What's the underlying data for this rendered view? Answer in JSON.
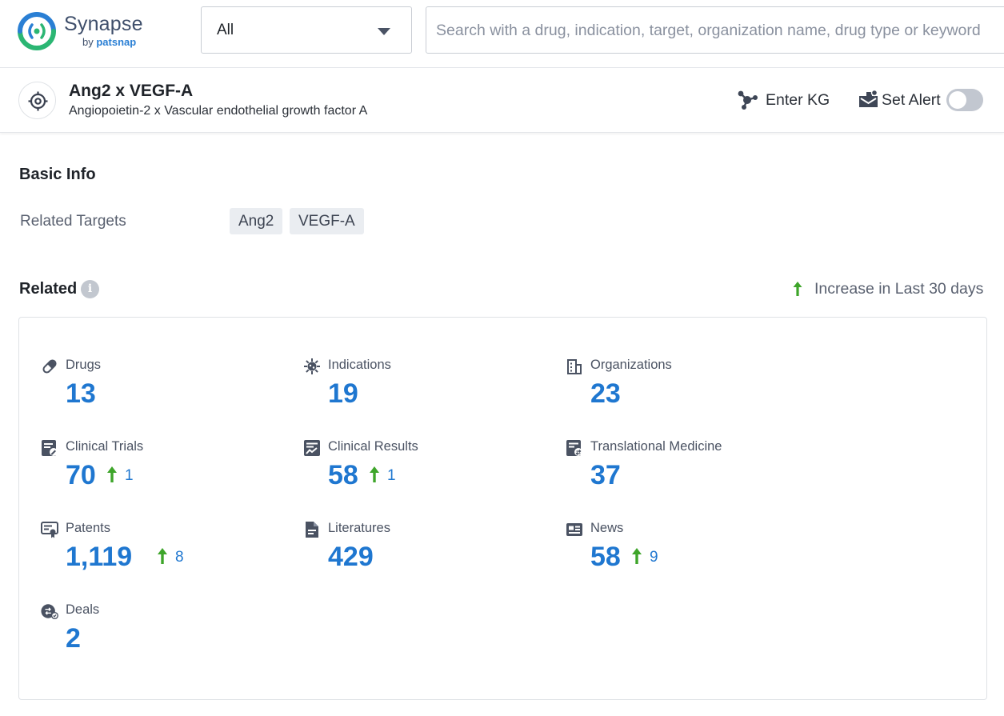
{
  "app": {
    "name": "Synapse",
    "by": "by",
    "company": "patsnap",
    "colors": {
      "accent": "#1f77d0",
      "increase": "#3ea52a",
      "brand_green": "#2bb673",
      "brand_blue": "#2a7fd4"
    }
  },
  "search": {
    "scope": "All",
    "placeholder": "Search with a drug, indication, target, organization name, drug type or keyword",
    "value": ""
  },
  "header": {
    "title": "Ang2 x VEGF-A",
    "subtitle": "Angiopoietin-2 x Vascular endothelial growth factor A",
    "enter_kg": "Enter KG",
    "set_alert": "Set Alert",
    "alert_enabled": false
  },
  "basic_info": {
    "title": "Basic Info",
    "related_targets_label": "Related Targets",
    "related_targets": [
      "Ang2",
      "VEGF-A"
    ]
  },
  "related": {
    "title": "Related",
    "info_glyph": "i",
    "legend": "Increase in Last 30 days",
    "items": [
      {
        "name": "Drugs",
        "value": "13",
        "increase": null,
        "icon": "pill-icon"
      },
      {
        "name": "Indications",
        "value": "19",
        "increase": null,
        "icon": "virus-icon"
      },
      {
        "name": "Organizations",
        "value": "23",
        "increase": null,
        "icon": "building-icon"
      },
      {
        "name": "Clinical Trials",
        "value": "70",
        "increase": "1",
        "icon": "clinical-trials-icon"
      },
      {
        "name": "Clinical Results",
        "value": "58",
        "increase": "1",
        "icon": "clinical-results-icon"
      },
      {
        "name": "Translational Medicine",
        "value": "37",
        "increase": null,
        "icon": "translational-medicine-icon"
      },
      {
        "name": "Patents",
        "value": "1,119",
        "increase": "8",
        "icon": "patent-icon"
      },
      {
        "name": "Literatures",
        "value": "429",
        "increase": null,
        "icon": "literature-icon"
      },
      {
        "name": "News",
        "value": "58",
        "increase": "9",
        "icon": "news-icon"
      },
      {
        "name": "Deals",
        "value": "2",
        "increase": null,
        "icon": "deals-icon"
      }
    ]
  }
}
